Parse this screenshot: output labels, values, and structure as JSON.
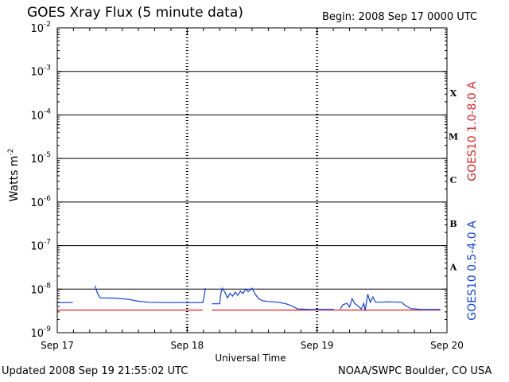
{
  "header": {
    "title": "GOES Xray Flux (5 minute data)",
    "begin": "Begin:  2008 Sep 17 0000 UTC"
  },
  "footer": {
    "updated": "Updated 2008 Sep 19 21:55:02 UTC",
    "credit": "NOAA/SWPC Boulder, CO USA"
  },
  "chart_data": {
    "type": "line",
    "xlabel": "Universal Time",
    "ylabel": "Watts m",
    "ylabel_sup": "-2",
    "x_ticks": [
      "Sep 17",
      "Sep 18",
      "Sep 19",
      "Sep 20"
    ],
    "x_unit": "days since 2008 Sep 17 0000 UTC",
    "xlim": [
      0,
      3
    ],
    "ylim": [
      1e-09,
      0.01
    ],
    "yscale": "log",
    "y_ticks": [
      {
        "exp": "-2",
        "value": 0.01
      },
      {
        "exp": "-3",
        "value": 0.001
      },
      {
        "exp": "-4",
        "value": 0.0001
      },
      {
        "exp": "-5",
        "value": 1e-05
      },
      {
        "exp": "-6",
        "value": 1e-06
      },
      {
        "exp": "-7",
        "value": 1e-07
      },
      {
        "exp": "-8",
        "value": 1e-08
      },
      {
        "exp": "-9",
        "value": 1e-09
      }
    ],
    "flare_classes": [
      {
        "label": "X",
        "value": 0.00032
      },
      {
        "label": "M",
        "value": 3.2e-05
      },
      {
        "label": "C",
        "value": 3.2e-06
      },
      {
        "label": "B",
        "value": 3.2e-07
      },
      {
        "label": "A",
        "value": 3.2e-08
      }
    ],
    "right_labels": [
      "GOES10 1.0-8.0 A",
      "GOES10 0.5-4.0 A"
    ],
    "colors": {
      "long": "#e02020",
      "short": "#1040e0",
      "grid": "#000000"
    },
    "series": [
      {
        "name": "GOES10 1.0-8.0 A",
        "color": "#e02020",
        "segments": [
          [
            [
              0.0,
              3.3e-09
            ],
            [
              0.28,
              3.3e-09
            ],
            [
              0.85,
              3.3e-09
            ],
            [
              1.12,
              3.3e-09
            ]
          ],
          [
            [
              1.19,
              3.3e-09
            ],
            [
              1.62,
              3.3e-09
            ],
            [
              2.18,
              3.3e-09
            ]
          ],
          [
            [
              2.18,
              3.3e-09
            ],
            [
              2.95,
              3.3e-09
            ]
          ]
        ]
      },
      {
        "name": "GOES10 0.5-4.0 A",
        "color": "#1040e0",
        "segments": [
          [
            [
              0.0,
              4.9e-09
            ],
            [
              0.12,
              4.9e-09
            ]
          ],
          [
            [
              0.29,
              1.2e-08
            ],
            [
              0.31,
              8e-09
            ],
            [
              0.33,
              6.3e-09
            ],
            [
              0.45,
              6.2e-09
            ],
            [
              0.55,
              5.8e-09
            ],
            [
              0.62,
              5.3e-09
            ],
            [
              0.7,
              5e-09
            ],
            [
              0.85,
              4.9e-09
            ],
            [
              1.0,
              4.9e-09
            ],
            [
              1.12,
              4.9e-09
            ]
          ],
          [
            [
              1.12,
              4.8e-09
            ],
            [
              1.13,
              6.6e-09
            ],
            [
              1.14,
              1.05e-08
            ]
          ],
          [
            [
              1.19,
              4.6e-09
            ],
            [
              1.25,
              4.6e-09
            ],
            [
              1.26,
              8e-09
            ],
            [
              1.27,
              1.05e-08
            ],
            [
              1.29,
              8.5e-09
            ],
            [
              1.31,
              6.3e-09
            ],
            [
              1.33,
              8e-09
            ],
            [
              1.35,
              6.9e-09
            ],
            [
              1.37,
              8.5e-09
            ],
            [
              1.39,
              7.2e-09
            ],
            [
              1.41,
              9e-09
            ],
            [
              1.43,
              7.9e-09
            ],
            [
              1.45,
              1e-08
            ],
            [
              1.47,
              8.7e-09
            ],
            [
              1.5,
              1.05e-08
            ],
            [
              1.52,
              7.9e-09
            ],
            [
              1.55,
              6e-09
            ],
            [
              1.58,
              5.4e-09
            ],
            [
              1.62,
              5.2e-09
            ],
            [
              1.7,
              5e-09
            ],
            [
              1.76,
              4.6e-09
            ],
            [
              1.8,
              4.2e-09
            ],
            [
              1.85,
              3.5e-09
            ],
            [
              1.95,
              3.4e-09
            ],
            [
              2.1,
              3.4e-09
            ],
            [
              2.13,
              3.4e-09
            ]
          ],
          [
            [
              2.18,
              3.5e-09
            ],
            [
              2.2,
              4.4e-09
            ],
            [
              2.23,
              4.7e-09
            ],
            [
              2.25,
              3.9e-09
            ],
            [
              2.27,
              6e-09
            ],
            [
              2.29,
              4.7e-09
            ],
            [
              2.32,
              4e-09
            ],
            [
              2.34,
              3.5e-09
            ],
            [
              2.36,
              4.7e-09
            ],
            [
              2.37,
              3.2e-09
            ],
            [
              2.39,
              7.6e-09
            ],
            [
              2.41,
              5e-09
            ],
            [
              2.43,
              6.6e-09
            ],
            [
              2.45,
              5e-09
            ],
            [
              2.55,
              5.1e-09
            ],
            [
              2.65,
              5e-09
            ],
            [
              2.68,
              4.2e-09
            ],
            [
              2.72,
              3.6e-09
            ],
            [
              2.8,
              3.4e-09
            ],
            [
              2.95,
              3.4e-09
            ]
          ]
        ]
      }
    ]
  }
}
